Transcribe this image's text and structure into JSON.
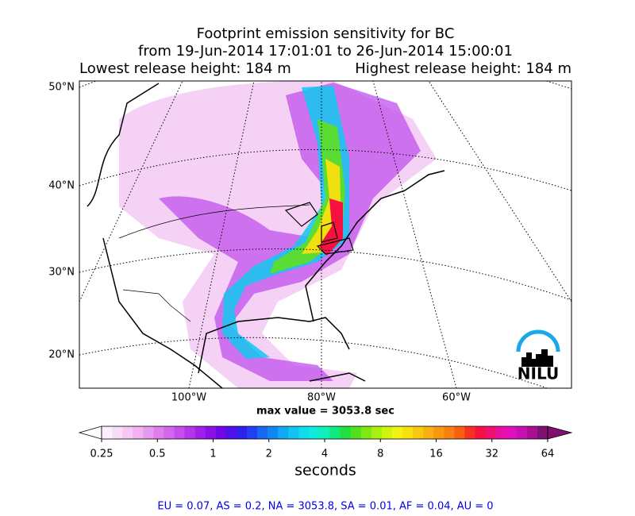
{
  "title_lines": [
    "Footprint emission sensitivity for BC",
    "from 19-Jun-2014 17:01:01 to 26-Jun-2014 15:00:01"
  ],
  "release": {
    "lowest": "Lowest release height: 184 m",
    "highest": "Highest release height: 184 m"
  },
  "map": {
    "lat_labels": [
      "50°N",
      "40°N",
      "30°N",
      "20°N"
    ],
    "lon_labels": [
      "100°W",
      "80°W",
      "60°W"
    ],
    "max_value": "max value = 3053.8 sec",
    "logo": "NILU"
  },
  "colorbar": {
    "ticks": [
      0.25,
      0.5,
      1,
      2,
      4,
      8,
      16,
      32,
      64
    ],
    "log": true,
    "label": "seconds",
    "colors": [
      "#fdeefd",
      "#f9dcf9",
      "#f5c8f5",
      "#f0b2f0",
      "#ea9aee",
      "#e07fec",
      "#d466ec",
      "#c64cec",
      "#b535ea",
      "#a020e8",
      "#8c10e6",
      "#7008e8",
      "#5010ea",
      "#3020ee",
      "#2040f4",
      "#1868f4",
      "#1088f4",
      "#10a8f4",
      "#10c4f0",
      "#10dcec",
      "#10ecdc",
      "#10f0b8",
      "#10e880",
      "#20e040",
      "#50e020",
      "#80e810",
      "#a8f010",
      "#d0f410",
      "#f0f410",
      "#f8e010",
      "#f8c810",
      "#f8b010",
      "#f89810",
      "#f88010",
      "#f86010",
      "#f83020",
      "#f81040",
      "#f01070",
      "#e810a0",
      "#e010c0",
      "#c810b0",
      "#a81090",
      "#801070"
    ]
  },
  "footer": "EU = 0.07,  AS = 0.2,  NA = 3053.8,  SA = 0.01,  AF = 0.04,  AU = 0"
}
